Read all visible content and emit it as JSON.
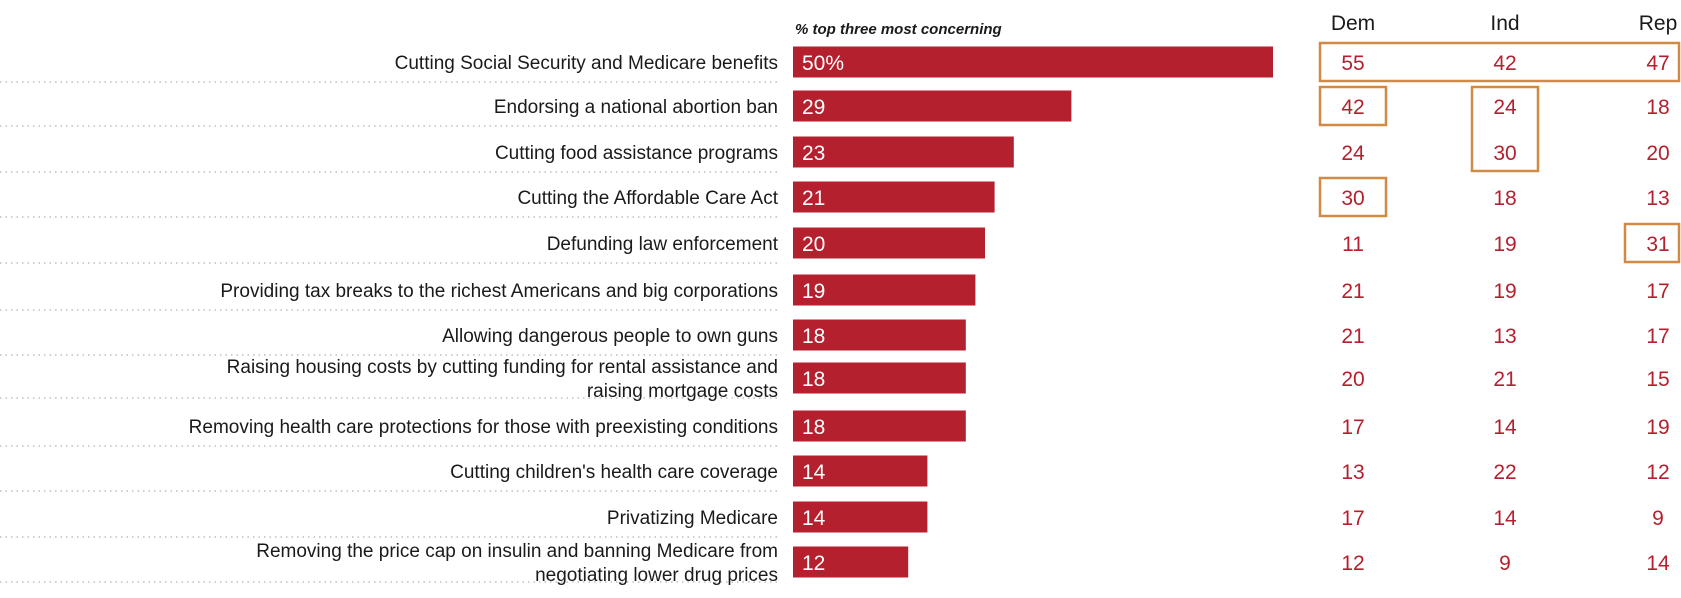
{
  "chart_data": {
    "type": "bar",
    "orientation": "horizontal",
    "metric_label": "% top three most concerning",
    "categories": [
      [
        "Cutting Social Security and Medicare benefits"
      ],
      [
        "Endorsing a national abortion ban"
      ],
      [
        "Cutting food assistance programs"
      ],
      [
        "Cutting the Affordable Care Act"
      ],
      [
        "Defunding law enforcement"
      ],
      [
        "Providing tax breaks to the richest Americans and big corporations"
      ],
      [
        "Allowing dangerous people to own guns"
      ],
      [
        "Raising housing costs by cutting funding for rental assistance and",
        "raising mortgage costs"
      ],
      [
        "Removing health care protections for those with preexisting conditions"
      ],
      [
        "Cutting children's health care coverage"
      ],
      [
        "Privatizing Medicare"
      ],
      [
        "Removing the price cap on insulin and banning Medicare from",
        "negotiating lower drug prices"
      ]
    ],
    "values": [
      50,
      29,
      23,
      21,
      20,
      19,
      18,
      18,
      18,
      14,
      14,
      12
    ],
    "value_labels": [
      "50%",
      "29",
      "23",
      "21",
      "20",
      "19",
      "18",
      "18",
      "18",
      "14",
      "14",
      "12"
    ],
    "xlim": [
      0,
      50
    ],
    "table": {
      "columns": [
        "Dem",
        "Ind",
        "Rep"
      ],
      "rows": [
        [
          55,
          42,
          47
        ],
        [
          42,
          24,
          18
        ],
        [
          24,
          30,
          20
        ],
        [
          30,
          18,
          13
        ],
        [
          11,
          19,
          31
        ],
        [
          21,
          19,
          17
        ],
        [
          21,
          13,
          17
        ],
        [
          20,
          21,
          15
        ],
        [
          17,
          14,
          19
        ],
        [
          13,
          22,
          12
        ],
        [
          17,
          14,
          9
        ],
        [
          12,
          9,
          14
        ]
      ],
      "highlights": [
        {
          "rows": [
            0,
            0
          ],
          "cols": [
            0,
            2
          ]
        },
        {
          "rows": [
            1,
            1
          ],
          "cols": [
            0,
            0
          ]
        },
        {
          "rows": [
            1,
            2
          ],
          "cols": [
            1,
            1
          ]
        },
        {
          "rows": [
            3,
            3
          ],
          "cols": [
            0,
            0
          ]
        },
        {
          "rows": [
            4,
            4
          ],
          "cols": [
            2,
            2
          ]
        }
      ]
    },
    "colors": {
      "bar": "#b5202e",
      "value_text": "#b5202e",
      "highlight_border": "#d08a44",
      "dotted_line": "#bfbfbf"
    }
  }
}
